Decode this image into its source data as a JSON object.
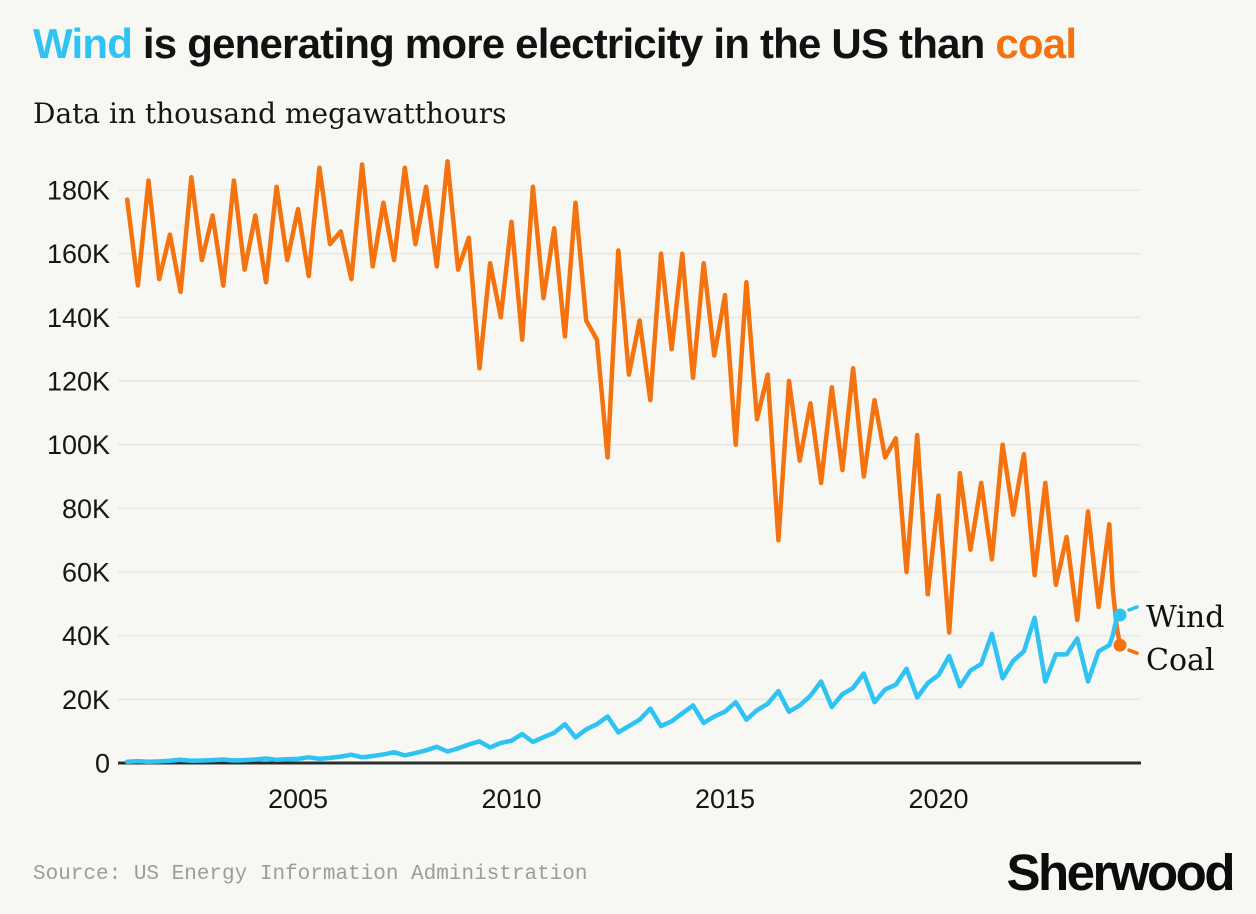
{
  "header": {
    "title_parts": [
      {
        "text": "Wind",
        "color": "#2ec3f2"
      },
      {
        "text": " is generating more electricity in the US than ",
        "color": "#121212"
      },
      {
        "text": "coal",
        "color": "#f4730e"
      }
    ],
    "subtitle": "Data in thousand megawatthours"
  },
  "footer": {
    "source": "Source: US Energy Information Administration",
    "logo": "Sherwood"
  },
  "chart_data": {
    "type": "line",
    "title": "Wind is generating more electricity in the US than coal",
    "subtitle": "Data in thousand megawatthours",
    "unit": "thousand megawatthours",
    "background": "#f7f7f4",
    "grid": true,
    "grid_color": "#e7e7e3",
    "axis_color": "#2d2d2d",
    "legend_position": "end-of-line labels at right",
    "x_axis": {
      "range": [
        2000.9,
        2024.7
      ],
      "tick_values": [
        2005,
        2010,
        2015,
        2020
      ],
      "tick_labels": [
        "2005",
        "2010",
        "2015",
        "2020"
      ]
    },
    "y_axis": {
      "range": [
        0,
        190
      ],
      "tick_values": [
        0,
        20,
        40,
        60,
        80,
        100,
        120,
        140,
        160,
        180
      ],
      "tick_labels": [
        "0",
        "20K",
        "40K",
        "60K",
        "80K",
        "100K",
        "120K",
        "140K",
        "160K",
        "180K"
      ]
    },
    "series": [
      {
        "name": "Coal",
        "color": "#f4730e",
        "points": [
          [
            2001.0,
            177
          ],
          [
            2001.25,
            150
          ],
          [
            2001.5,
            183
          ],
          [
            2001.75,
            152
          ],
          [
            2002.0,
            166
          ],
          [
            2002.25,
            148
          ],
          [
            2002.5,
            184
          ],
          [
            2002.75,
            158
          ],
          [
            2003.0,
            172
          ],
          [
            2003.25,
            150
          ],
          [
            2003.5,
            183
          ],
          [
            2003.75,
            155
          ],
          [
            2004.0,
            172
          ],
          [
            2004.25,
            151
          ],
          [
            2004.5,
            181
          ],
          [
            2004.75,
            158
          ],
          [
            2005.0,
            174
          ],
          [
            2005.25,
            153
          ],
          [
            2005.5,
            187
          ],
          [
            2005.75,
            163
          ],
          [
            2006.0,
            167
          ],
          [
            2006.25,
            152
          ],
          [
            2006.5,
            188
          ],
          [
            2006.75,
            156
          ],
          [
            2007.0,
            176
          ],
          [
            2007.25,
            158
          ],
          [
            2007.5,
            187
          ],
          [
            2007.75,
            163
          ],
          [
            2008.0,
            181
          ],
          [
            2008.25,
            156
          ],
          [
            2008.5,
            189
          ],
          [
            2008.75,
            155
          ],
          [
            2009.0,
            165
          ],
          [
            2009.25,
            124
          ],
          [
            2009.5,
            157
          ],
          [
            2009.75,
            140
          ],
          [
            2010.0,
            170
          ],
          [
            2010.25,
            133
          ],
          [
            2010.5,
            181
          ],
          [
            2010.75,
            146
          ],
          [
            2011.0,
            168
          ],
          [
            2011.25,
            134
          ],
          [
            2011.5,
            176
          ],
          [
            2011.75,
            139
          ],
          [
            2012.0,
            133
          ],
          [
            2012.25,
            96
          ],
          [
            2012.5,
            161
          ],
          [
            2012.75,
            122
          ],
          [
            2013.0,
            139
          ],
          [
            2013.25,
            114
          ],
          [
            2013.5,
            160
          ],
          [
            2013.75,
            130
          ],
          [
            2014.0,
            160
          ],
          [
            2014.25,
            121
          ],
          [
            2014.5,
            157
          ],
          [
            2014.75,
            128
          ],
          [
            2015.0,
            147
          ],
          [
            2015.25,
            100
          ],
          [
            2015.5,
            151
          ],
          [
            2015.75,
            108
          ],
          [
            2016.0,
            122
          ],
          [
            2016.25,
            70
          ],
          [
            2016.5,
            120
          ],
          [
            2016.75,
            95
          ],
          [
            2017.0,
            113
          ],
          [
            2017.25,
            88
          ],
          [
            2017.5,
            118
          ],
          [
            2017.75,
            92
          ],
          [
            2018.0,
            124
          ],
          [
            2018.25,
            90
          ],
          [
            2018.5,
            114
          ],
          [
            2018.75,
            96
          ],
          [
            2019.0,
            102
          ],
          [
            2019.25,
            60
          ],
          [
            2019.5,
            103
          ],
          [
            2019.75,
            53
          ],
          [
            2020.0,
            84
          ],
          [
            2020.25,
            41
          ],
          [
            2020.5,
            91
          ],
          [
            2020.75,
            67
          ],
          [
            2021.0,
            88
          ],
          [
            2021.25,
            64
          ],
          [
            2021.5,
            100
          ],
          [
            2021.75,
            78
          ],
          [
            2022.0,
            97
          ],
          [
            2022.25,
            59
          ],
          [
            2022.5,
            88
          ],
          [
            2022.75,
            56
          ],
          [
            2023.0,
            71
          ],
          [
            2023.25,
            45
          ],
          [
            2023.5,
            79
          ],
          [
            2023.75,
            49
          ],
          [
            2024.0,
            75
          ],
          [
            2024.08,
            55
          ],
          [
            2024.17,
            43
          ],
          [
            2024.25,
            37
          ]
        ]
      },
      {
        "name": "Wind",
        "color": "#2ec3f2",
        "points": [
          [
            2001.0,
            0.4
          ],
          [
            2001.25,
            0.6
          ],
          [
            2001.5,
            0.4
          ],
          [
            2001.75,
            0.5
          ],
          [
            2002.0,
            0.7
          ],
          [
            2002.25,
            1.0
          ],
          [
            2002.5,
            0.7
          ],
          [
            2002.75,
            0.8
          ],
          [
            2003.0,
            0.9
          ],
          [
            2003.25,
            1.1
          ],
          [
            2003.5,
            0.8
          ],
          [
            2003.75,
            0.9
          ],
          [
            2004.0,
            1.1
          ],
          [
            2004.25,
            1.4
          ],
          [
            2004.5,
            1.0
          ],
          [
            2004.75,
            1.2
          ],
          [
            2005.0,
            1.3
          ],
          [
            2005.25,
            1.8
          ],
          [
            2005.5,
            1.3
          ],
          [
            2005.75,
            1.6
          ],
          [
            2006.0,
            2.0
          ],
          [
            2006.25,
            2.6
          ],
          [
            2006.5,
            1.8
          ],
          [
            2006.75,
            2.2
          ],
          [
            2007.0,
            2.7
          ],
          [
            2007.25,
            3.4
          ],
          [
            2007.5,
            2.4
          ],
          [
            2007.75,
            3.1
          ],
          [
            2008.0,
            4.0
          ],
          [
            2008.25,
            5.1
          ],
          [
            2008.5,
            3.6
          ],
          [
            2008.75,
            4.6
          ],
          [
            2009.0,
            5.8
          ],
          [
            2009.25,
            6.8
          ],
          [
            2009.5,
            4.9
          ],
          [
            2009.75,
            6.3
          ],
          [
            2010.0,
            7.0
          ],
          [
            2010.25,
            9.1
          ],
          [
            2010.5,
            6.6
          ],
          [
            2010.75,
            8.1
          ],
          [
            2011.0,
            9.5
          ],
          [
            2011.25,
            12.2
          ],
          [
            2011.5,
            8.0
          ],
          [
            2011.75,
            10.6
          ],
          [
            2012.0,
            12.2
          ],
          [
            2012.25,
            14.6
          ],
          [
            2012.5,
            9.6
          ],
          [
            2012.75,
            11.6
          ],
          [
            2013.0,
            13.6
          ],
          [
            2013.25,
            17.1
          ],
          [
            2013.5,
            11.6
          ],
          [
            2013.75,
            13.1
          ],
          [
            2014.0,
            15.6
          ],
          [
            2014.25,
            18.1
          ],
          [
            2014.5,
            12.6
          ],
          [
            2014.75,
            14.6
          ],
          [
            2015.0,
            16.1
          ],
          [
            2015.25,
            19.1
          ],
          [
            2015.5,
            13.6
          ],
          [
            2015.75,
            16.6
          ],
          [
            2016.0,
            18.6
          ],
          [
            2016.25,
            22.6
          ],
          [
            2016.5,
            16.1
          ],
          [
            2016.75,
            18.1
          ],
          [
            2017.0,
            21.1
          ],
          [
            2017.25,
            25.6
          ],
          [
            2017.5,
            17.6
          ],
          [
            2017.75,
            21.6
          ],
          [
            2018.0,
            23.6
          ],
          [
            2018.25,
            28.1
          ],
          [
            2018.5,
            19.1
          ],
          [
            2018.75,
            23.1
          ],
          [
            2019.0,
            24.6
          ],
          [
            2019.25,
            29.6
          ],
          [
            2019.5,
            20.6
          ],
          [
            2019.75,
            25.1
          ],
          [
            2020.0,
            27.6
          ],
          [
            2020.25,
            33.6
          ],
          [
            2020.5,
            24.1
          ],
          [
            2020.75,
            29.1
          ],
          [
            2021.0,
            31.1
          ],
          [
            2021.25,
            40.6
          ],
          [
            2021.5,
            26.6
          ],
          [
            2021.75,
            32.1
          ],
          [
            2022.0,
            35.1
          ],
          [
            2022.25,
            45.6
          ],
          [
            2022.5,
            25.6
          ],
          [
            2022.75,
            34.1
          ],
          [
            2023.0,
            34.1
          ],
          [
            2023.25,
            39.1
          ],
          [
            2023.5,
            25.6
          ],
          [
            2023.75,
            35.1
          ],
          [
            2024.0,
            37.0
          ],
          [
            2024.08,
            40.0
          ],
          [
            2024.17,
            45.5
          ],
          [
            2024.25,
            46.5
          ]
        ]
      }
    ]
  }
}
